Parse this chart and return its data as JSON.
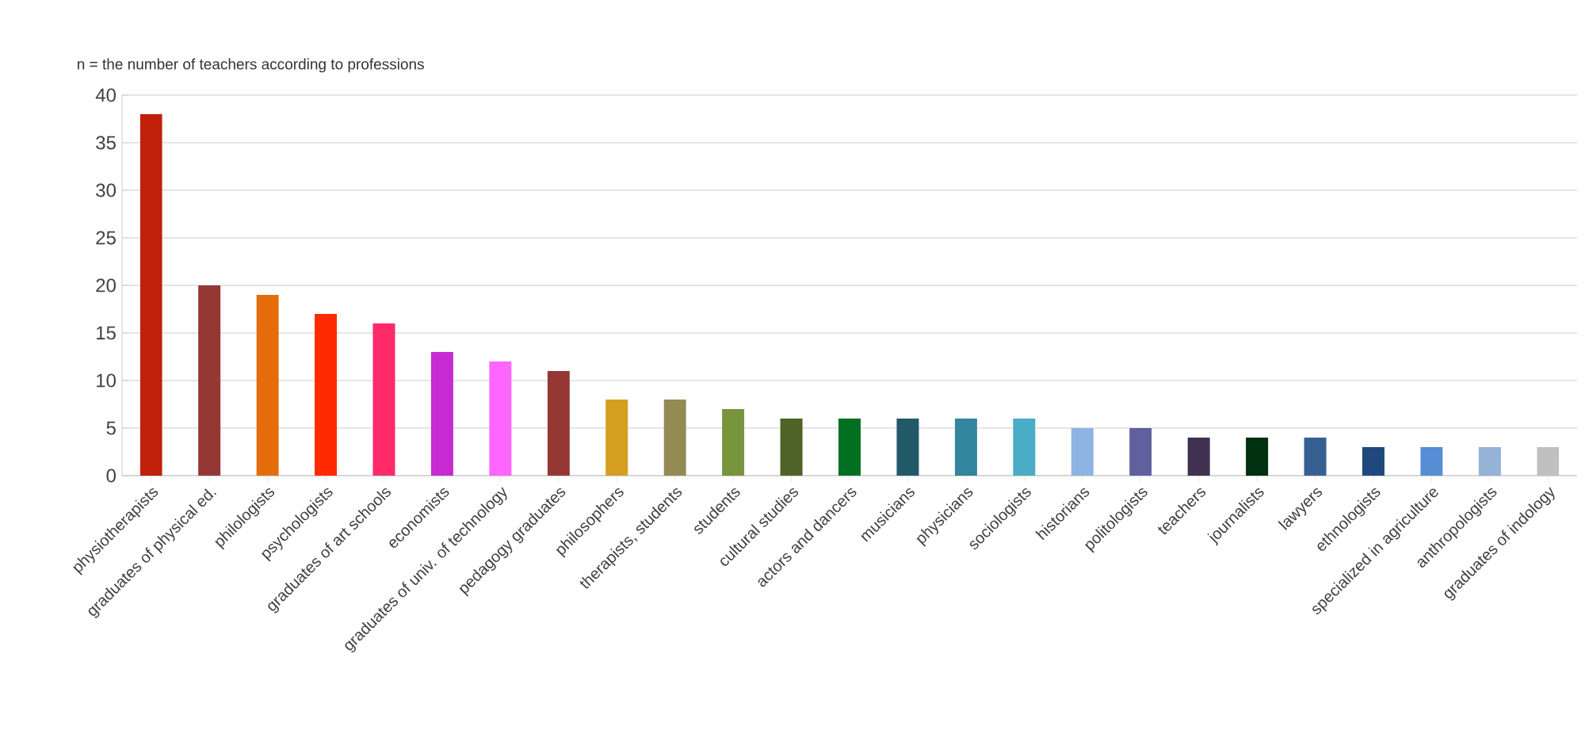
{
  "chart_data": {
    "type": "bar",
    "title": "n = the number of teachers according to professions",
    "categories": [
      "physiotherapists",
      "graduates of physical ed.",
      "philologists",
      "psychologists",
      "graduates of art schools",
      "economists",
      "graduates of univ. of technology",
      "pedagogy graduates",
      "philosophers",
      "therapists, students",
      "students",
      "cultural studies",
      "actors and dancers",
      "musicians",
      "physicians",
      "sociologists",
      "historians",
      "politologists",
      "teachers",
      "journalists",
      "lawyers",
      "ethnologists",
      "specialized in agriculture",
      "anthropologists",
      "graduates of indology"
    ],
    "values": [
      38,
      20,
      19,
      17,
      16,
      13,
      12,
      11,
      8,
      8,
      7,
      6,
      6,
      6,
      6,
      6,
      5,
      5,
      4,
      4,
      4,
      3,
      3,
      3,
      3
    ],
    "colors": [
      "#c0200a",
      "#953735",
      "#e46c0a",
      "#ff2a00",
      "#ff2a6a",
      "#c62ad0",
      "#ff66ff",
      "#953735",
      "#d49e1e",
      "#948a54",
      "#77933c",
      "#4f6228",
      "#007020",
      "#215968",
      "#31859c",
      "#4bacc6",
      "#8db4e2",
      "#60609e",
      "#403151",
      "#003010",
      "#366092",
      "#1f497d",
      "#558ed5",
      "#95b3d7",
      "#c0c0c0"
    ],
    "ylim": [
      0,
      40
    ],
    "yticks": [
      0,
      5,
      10,
      15,
      20,
      25,
      30,
      35,
      40
    ],
    "grid": "y"
  }
}
